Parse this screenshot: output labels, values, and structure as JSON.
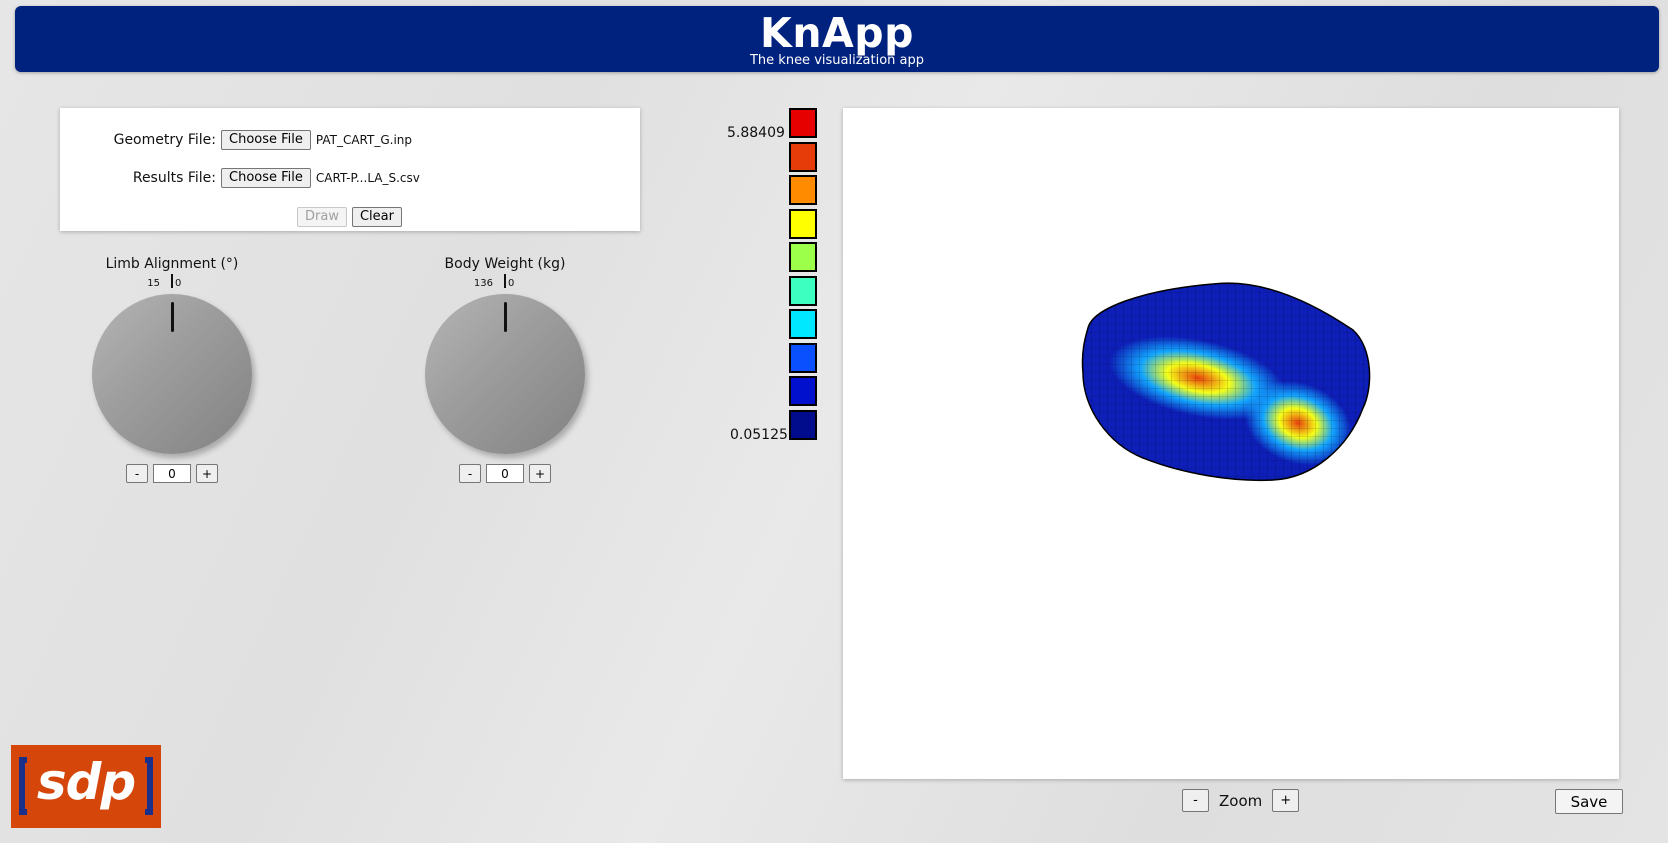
{
  "header": {
    "title": "KnApp",
    "subtitle": "The knee visualization app"
  },
  "files": {
    "geometry_label": "Geometry File:",
    "geometry_button": "Choose File",
    "geometry_name": "PAT_CART_G.inp",
    "results_label": "Results File:",
    "results_button": "Choose File",
    "results_name": "CART-P...LA_S.csv",
    "draw_label": "Draw",
    "clear_label": "Clear"
  },
  "limb": {
    "title": "Limb Alignment (°)",
    "min": "15",
    "max": "0",
    "value": "0",
    "minus": "-",
    "plus": "+"
  },
  "weight": {
    "title": "Body Weight (kg)",
    "min": "136",
    "max": "0",
    "value": "0",
    "minus": "-",
    "plus": "+"
  },
  "legend": {
    "max": "5.88409",
    "min": "0.05125",
    "colors": [
      "#e60000",
      "#e63c0a",
      "#ff8c00",
      "#ffff00",
      "#9cff4a",
      "#3cffc0",
      "#00e8ff",
      "#0a50ff",
      "#0010cc",
      "#000c8c"
    ]
  },
  "viewer": {
    "zoom_label": "Zoom",
    "zoom_minus": "-",
    "zoom_plus": "+",
    "save_label": "Save",
    "mesh_colors": {
      "base": "#0d1fb8",
      "mid": "#13a6ff",
      "hot": "#f5ff19",
      "peak": "#e8400c"
    }
  },
  "logo": {
    "text": "sdp",
    "brand_color": "#d5460a",
    "bracket_color": "#1a2f8a"
  }
}
